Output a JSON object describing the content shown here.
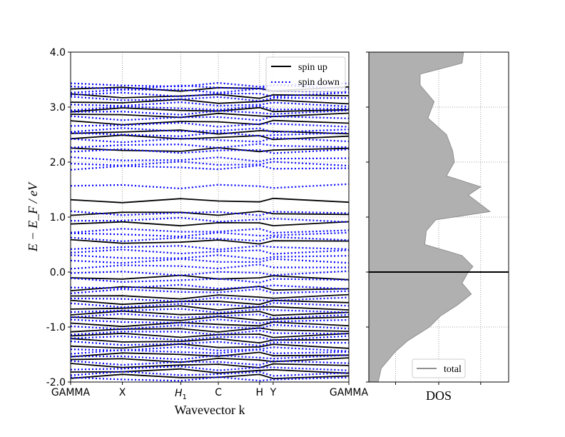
{
  "chart_data": [
    {
      "type": "line",
      "subtype": "band-structure",
      "ylabel": "E − E_F / eV",
      "xlabel": "Wavevector k",
      "ylim": [
        -2.0,
        4.0
      ],
      "yticks": [
        "-2.0",
        "-1.0",
        "0.0",
        "1.0",
        "2.0",
        "3.0",
        "4.0"
      ],
      "k_labels": [
        "GAMMA",
        "X",
        "H1",
        "C",
        "H",
        "Y",
        "GAMMA"
      ],
      "k_ticks": [
        0.0,
        0.186,
        0.396,
        0.531,
        0.679,
        0.728,
        1.0
      ],
      "grid": true,
      "legend_position": "upper-right",
      "series": [
        {
          "name": "spin up",
          "color": "#000000",
          "style": "solid",
          "energies": [
            3.33,
            3.2,
            3.1,
            2.95,
            2.85,
            2.72,
            2.55,
            2.45,
            2.22,
            1.3,
            1.07,
            0.88,
            0.55,
            -0.1,
            -0.3,
            -0.45,
            -0.55,
            -0.65,
            -0.75,
            -0.85,
            -0.95,
            -1.05,
            -1.15,
            -1.25,
            -1.35,
            -1.5,
            -1.6,
            -1.7,
            -1.8,
            -1.9
          ]
        },
        {
          "name": "spin down",
          "color": "#0000ff",
          "style": "dotted",
          "energies": [
            3.4,
            3.36,
            3.3,
            3.23,
            3.15,
            3.05,
            2.98,
            2.9,
            2.8,
            2.68,
            2.58,
            2.5,
            2.4,
            2.3,
            2.2,
            2.05,
            1.97,
            1.9,
            1.56,
            1.07,
            0.95,
            0.75,
            0.68,
            0.6,
            0.45,
            0.37,
            0.27,
            0.2,
            0.1,
            -0.02,
            -0.15,
            -0.27,
            -0.35,
            -0.5,
            -0.6,
            -0.7,
            -0.8,
            -0.9,
            -1.0,
            -1.1,
            -1.2,
            -1.3,
            -1.4,
            -1.45,
            -1.55,
            -1.65,
            -1.75,
            -1.85,
            -1.95
          ]
        }
      ]
    },
    {
      "type": "area",
      "subtype": "density-of-states",
      "xlabel": "DOS",
      "ylim": [
        -2.0,
        4.0
      ],
      "grid": true,
      "fermi_line": 0.0,
      "legend_position": "lower-center",
      "series": [
        {
          "name": "total",
          "color": "#b0b0b0",
          "energies": [
            -2.0,
            -1.75,
            -1.45,
            -1.25,
            -1.0,
            -0.8,
            -0.6,
            -0.4,
            -0.2,
            0.0,
            0.1,
            0.3,
            0.5,
            0.75,
            0.95,
            1.1,
            1.4,
            1.55,
            1.75,
            2.0,
            2.2,
            2.5,
            2.8,
            3.1,
            3.4,
            3.6,
            3.8,
            4.0
          ],
          "dos": [
            0.3,
            0.4,
            0.85,
            1.25,
            1.95,
            2.3,
            2.85,
            3.3,
            3.0,
            3.2,
            3.35,
            3.0,
            1.8,
            1.85,
            2.15,
            3.9,
            3.2,
            3.6,
            2.5,
            2.75,
            2.7,
            2.5,
            1.9,
            2.1,
            1.65,
            1.65,
            3.0,
            3.05
          ]
        }
      ]
    }
  ]
}
